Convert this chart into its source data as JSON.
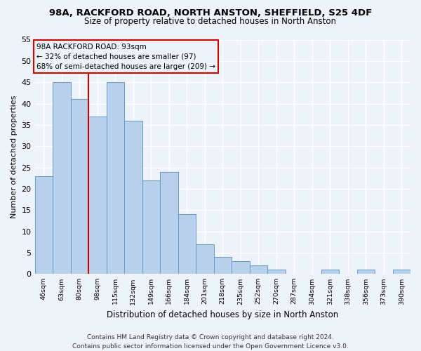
{
  "title1": "98A, RACKFORD ROAD, NORTH ANSTON, SHEFFIELD, S25 4DF",
  "title2": "Size of property relative to detached houses in North Anston",
  "xlabel": "Distribution of detached houses by size in North Anston",
  "ylabel": "Number of detached properties",
  "categories": [
    "46sqm",
    "63sqm",
    "80sqm",
    "98sqm",
    "115sqm",
    "132sqm",
    "149sqm",
    "166sqm",
    "184sqm",
    "201sqm",
    "218sqm",
    "235sqm",
    "252sqm",
    "270sqm",
    "287sqm",
    "304sqm",
    "321sqm",
    "338sqm",
    "356sqm",
    "373sqm",
    "390sqm"
  ],
  "values": [
    23,
    45,
    41,
    37,
    45,
    36,
    22,
    24,
    14,
    7,
    4,
    3,
    2,
    1,
    0,
    0,
    1,
    0,
    1,
    0,
    1
  ],
  "bar_color": "#b8d0ea",
  "bar_edge_color": "#6699cc",
  "vline_x_index": 3,
  "vline_color": "#cc0000",
  "annotation_box_text": "98A RACKFORD ROAD: 93sqm\n← 32% of detached houses are smaller (97)\n68% of semi-detached houses are larger (209) →",
  "annotation_box_edgecolor": "#cc0000",
  "annotation_text_fontsize": 7.5,
  "ylim": [
    0,
    55
  ],
  "yticks": [
    0,
    5,
    10,
    15,
    20,
    25,
    30,
    35,
    40,
    45,
    50,
    55
  ],
  "bg_color": "#eef2f9",
  "grid_color": "#ffffff",
  "title_fontsize": 9.5,
  "subtitle_fontsize": 8.5,
  "footer": "Contains HM Land Registry data © Crown copyright and database right 2024.\nContains public sector information licensed under the Open Government Licence v3.0.",
  "footer_fontsize": 6.5
}
